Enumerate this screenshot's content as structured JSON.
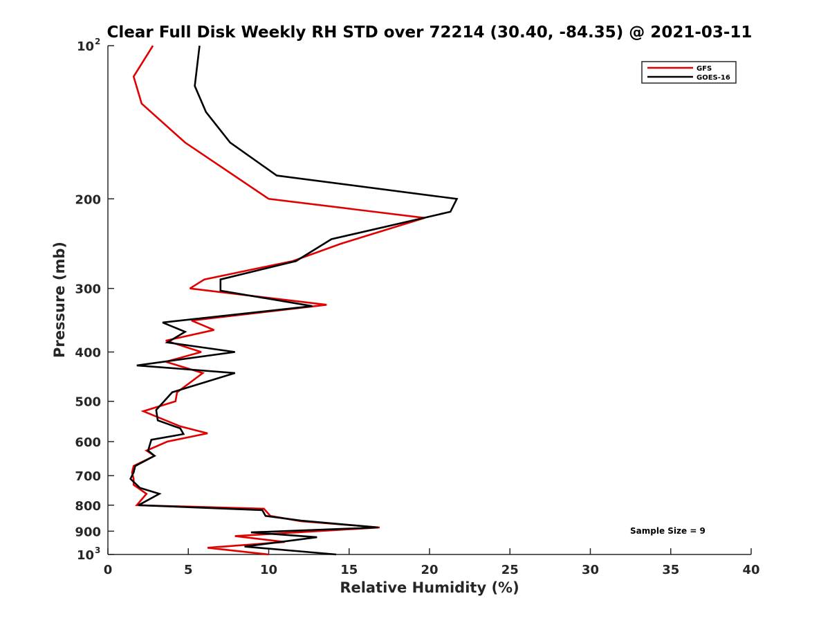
{
  "chart_data": {
    "type": "line",
    "title": "Clear Full Disk Weekly RH STD over 72214 (30.40, -84.35) @ 2021-03-11",
    "xlabel": "Relative Humidity (%)",
    "ylabel": "Pressure (mb)",
    "xlim": [
      0,
      40
    ],
    "ylim": [
      100,
      1000
    ],
    "yscale": "log",
    "y_reversed": true,
    "x_ticks": [
      0,
      5,
      10,
      15,
      20,
      25,
      30,
      35,
      40
    ],
    "x_tick_labels": [
      "0",
      "5",
      "10",
      "15",
      "20",
      "25",
      "30",
      "35",
      "40"
    ],
    "y_ticks": [
      {
        "value": 100,
        "label": "10",
        "exp": "2"
      },
      {
        "value": 200,
        "label": "200",
        "exp": ""
      },
      {
        "value": 300,
        "label": "300",
        "exp": ""
      },
      {
        "value": 400,
        "label": "400",
        "exp": ""
      },
      {
        "value": 500,
        "label": "500",
        "exp": ""
      },
      {
        "value": 600,
        "label": "600",
        "exp": ""
      },
      {
        "value": 700,
        "label": "700",
        "exp": ""
      },
      {
        "value": 800,
        "label": "800",
        "exp": ""
      },
      {
        "value": 900,
        "label": "900",
        "exp": ""
      },
      {
        "value": 1000,
        "label": "10",
        "exp": "3"
      }
    ],
    "grid": false,
    "legend_position": "top-right",
    "annotation": "Sample Size = 9",
    "series": [
      {
        "name": "GFS",
        "color": "#e00000",
        "points": [
          [
            2.8,
            100
          ],
          [
            1.6,
            115
          ],
          [
            2.1,
            130
          ],
          [
            4.8,
            155
          ],
          [
            10.0,
            200
          ],
          [
            19.7,
            218
          ],
          [
            14.5,
            245
          ],
          [
            11.5,
            265
          ],
          [
            6.0,
            288
          ],
          [
            5.1,
            300
          ],
          [
            13.6,
            323
          ],
          [
            5.2,
            347
          ],
          [
            6.6,
            362
          ],
          [
            3.6,
            380
          ],
          [
            5.8,
            400
          ],
          [
            3.6,
            418
          ],
          [
            5.9,
            440
          ],
          [
            4.3,
            480
          ],
          [
            4.2,
            500
          ],
          [
            2.2,
            523
          ],
          [
            4.5,
            560
          ],
          [
            6.2,
            578
          ],
          [
            3.7,
            600
          ],
          [
            2.4,
            625
          ],
          [
            2.9,
            640
          ],
          [
            1.6,
            670
          ],
          [
            1.5,
            690
          ],
          [
            1.6,
            710
          ],
          [
            1.6,
            730
          ],
          [
            2.4,
            760
          ],
          [
            1.8,
            800
          ],
          [
            9.7,
            813
          ],
          [
            10.1,
            840
          ],
          [
            12.0,
            860
          ],
          [
            16.9,
            885
          ],
          [
            7.9,
            920
          ],
          [
            11.0,
            945
          ],
          [
            6.2,
            970
          ],
          [
            10.0,
            1000
          ]
        ]
      },
      {
        "name": "GOES-16",
        "color": "#000000",
        "points": [
          [
            5.7,
            100
          ],
          [
            5.4,
            120
          ],
          [
            6.1,
            135
          ],
          [
            7.6,
            155
          ],
          [
            10.5,
            180
          ],
          [
            21.7,
            200
          ],
          [
            21.3,
            212
          ],
          [
            13.9,
            240
          ],
          [
            11.7,
            265
          ],
          [
            7.0,
            288
          ],
          [
            7.0,
            303
          ],
          [
            12.7,
            325
          ],
          [
            3.4,
            350
          ],
          [
            4.8,
            365
          ],
          [
            3.7,
            383
          ],
          [
            7.9,
            400
          ],
          [
            1.8,
            425
          ],
          [
            7.9,
            440
          ],
          [
            4.0,
            480
          ],
          [
            3.0,
            520
          ],
          [
            3.1,
            545
          ],
          [
            4.5,
            565
          ],
          [
            4.7,
            580
          ],
          [
            2.7,
            595
          ],
          [
            2.5,
            625
          ],
          [
            2.9,
            640
          ],
          [
            1.7,
            670
          ],
          [
            1.6,
            690
          ],
          [
            1.4,
            710
          ],
          [
            2.0,
            740
          ],
          [
            3.2,
            760
          ],
          [
            1.9,
            800
          ],
          [
            9.6,
            818
          ],
          [
            9.8,
            840
          ],
          [
            12.0,
            858
          ],
          [
            16.8,
            885
          ],
          [
            8.9,
            905
          ],
          [
            13.0,
            925
          ],
          [
            8.5,
            965
          ],
          [
            14.2,
            1000
          ]
        ]
      }
    ]
  }
}
